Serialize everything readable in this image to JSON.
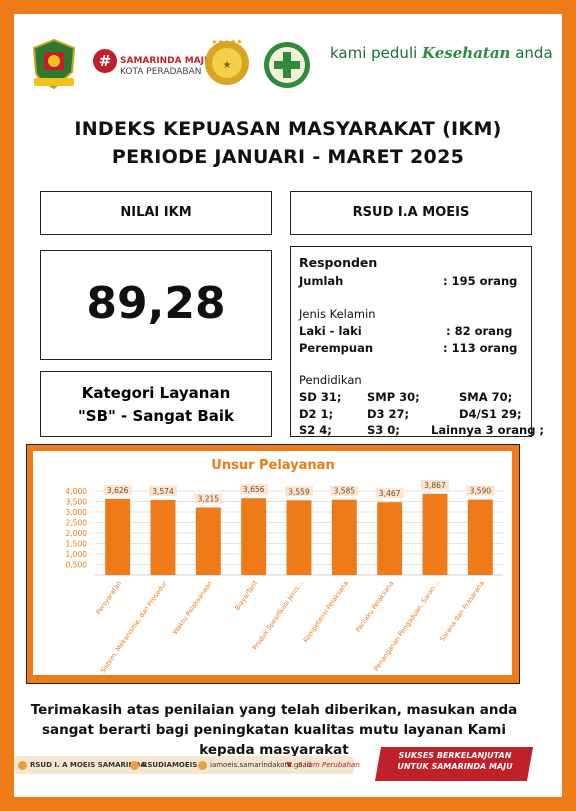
{
  "header": {
    "brand_line1": "SAMARINDA MAJU",
    "brand_line2": "KOTA PERADABAN",
    "tagline_pre": "kami peduli ",
    "tagline_em": "Kesehatan",
    "tagline_post": " anda"
  },
  "title": {
    "line1": "INDEKS KEPUASAN MASYARAKAT (IKM)",
    "line2": "PERIODE JANUARI - MARET 2025"
  },
  "summary": {
    "nilai_label": "NILAI IKM",
    "nilai_value": "89,28",
    "hospital": "RSUD I.A MOEIS",
    "kategori_line1": "Kategori Layanan",
    "kategori_line2": "\"SB\" - Sangat Baik"
  },
  "responden": {
    "heading": "Responden",
    "jumlah_label": "Jumlah",
    "jumlah_value": ": 195 orang",
    "gender_heading": "Jenis Kelamin",
    "male_label": "Laki - laki",
    "male_value": ": 82 orang",
    "female_label": "Perempuan",
    "female_value": ": 113 orang",
    "edu_heading": "Pendidikan",
    "edu": [
      "SD 31;",
      "SMP 30;",
      "SMA 70;",
      "D2 1;",
      "D3 27;",
      "D4/S1 29;",
      "S2 4;",
      "S3 0;",
      "Lainnya 3 orang ;"
    ]
  },
  "chart_data": {
    "type": "bar",
    "title": "Unsur Pelayanan",
    "categories": [
      "Persyaratan",
      "Sistem, Mekanisme, dan Prosedur",
      "Waktu Pelaksanaan",
      "Biaya/Tarif",
      "Produk Spesifikasi Jenis...",
      "Kompetensi Pelaksana",
      "Perilaku Pelaksana",
      "Penanganan Pengaduan, Saran...",
      "Sarana dan Prasarana"
    ],
    "values": [
      3.626,
      3.574,
      3.215,
      3.656,
      3.559,
      3.585,
      3.467,
      3.867,
      3.59
    ],
    "value_labels": [
      "3,626",
      "3,574",
      "3,215",
      "3,656",
      "3,559",
      "3,585",
      "3,467",
      "3,867",
      "3,590"
    ],
    "yticks": [
      "4,000",
      "3,500",
      "3,000",
      "2,500",
      "2,000",
      "1,500",
      "1,000",
      "0,500"
    ],
    "ylim": [
      0,
      4
    ],
    "bar_color": "#ee7a18",
    "grid": true
  },
  "thanks": "Terimakasih atas penilaian yang telah diberikan, masukan anda sangat berarti bagi peningkatan kualitas mutu layanan Kami kepada masyarakat",
  "footer": {
    "fb": "RSUD I. A MOEIS SAMARINDA",
    "ig": "RSUDIAMOEIS",
    "web": "iamoeis.samarindakota.go.id",
    "slogan": "Salam Perubahan",
    "banner_line1": "SUKSES BERKELANJUTAN",
    "banner_line2": "UNTUK SAMARINDA MAJU"
  },
  "colors": {
    "accent": "#ee7a18",
    "brand_red": "#c21f2a",
    "green": "#1b6e3a"
  }
}
